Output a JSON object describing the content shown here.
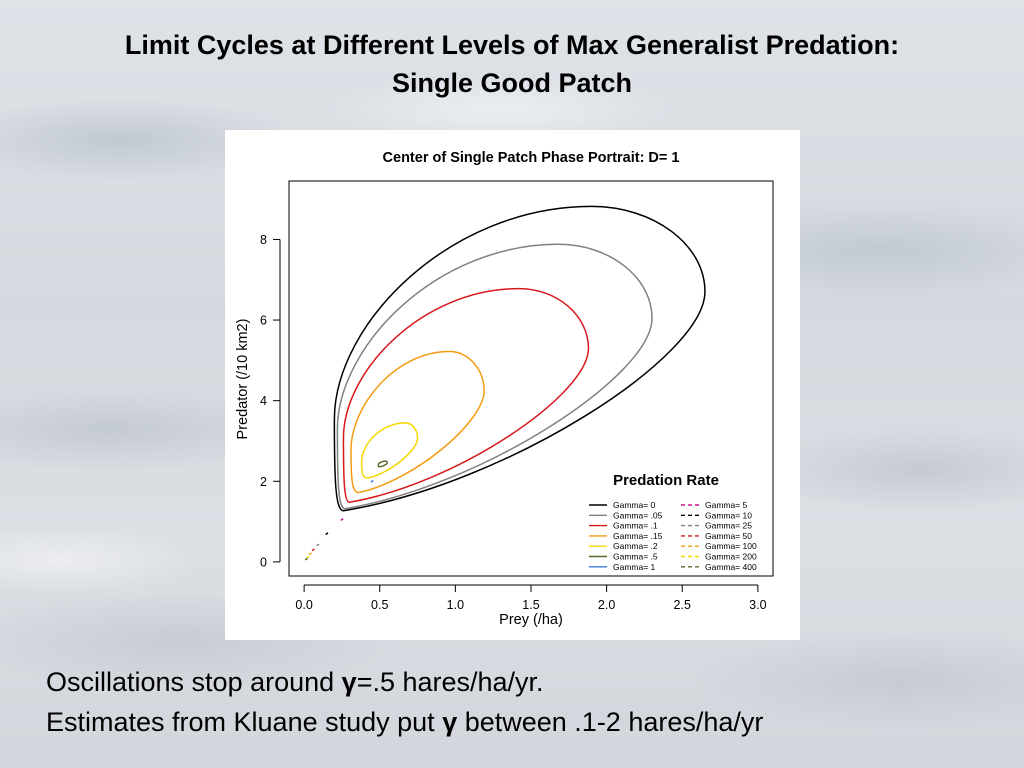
{
  "slide": {
    "title_line1": "Limit Cycles at Different Levels of Max Generalist Predation:",
    "title_line2": "Single Good Patch",
    "caption_line1": {
      "before": "Oscillations stop around ",
      "symbol": "γ",
      "after": "=.5 hares/ha/yr."
    },
    "caption_line2": {
      "before": "Estimates from Kluane study put ",
      "symbol": "γ",
      "after": " between .1-2 hares/ha/yr"
    }
  },
  "chart_data": {
    "type": "line",
    "title": "Center of Single Patch Phase Portrait: D= 1",
    "xlabel": "Prey (/ha)",
    "ylabel": "Predator (/10 km2)",
    "xlim": [
      -0.1,
      3.1
    ],
    "ylim": [
      -0.35,
      9.45
    ],
    "xticks": [
      0,
      0.5,
      1,
      1.5,
      2,
      2.5,
      3
    ],
    "xtick_labels": [
      "0.0",
      "0.5",
      "1.0",
      "1.5",
      "2.0",
      "2.5",
      "3.0"
    ],
    "yticks": [
      0,
      2,
      4,
      6,
      8
    ],
    "ytick_labels": [
      "0",
      "2",
      "4",
      "6",
      "8"
    ],
    "grid": false,
    "legend_title": "Predation Rate",
    "legend_position": "bottom-right",
    "series": [
      {
        "name": "Gamma= 0",
        "color": "#000000",
        "dash": "solid",
        "cycle": {
          "xmin": 0.2,
          "xmax": 2.65,
          "ymin": 1.27,
          "ymax": 8.82,
          "x_at_ymin": 0.26,
          "x_at_ymax": 1.9
        }
      },
      {
        "name": "Gamma= .05",
        "color": "#808080",
        "dash": "solid",
        "cycle": {
          "xmin": 0.22,
          "xmax": 2.3,
          "ymin": 1.32,
          "ymax": 7.88,
          "x_at_ymin": 0.27,
          "x_at_ymax": 1.68
        }
      },
      {
        "name": "Gamma= .1",
        "color": "#d7191c",
        "dash": "solid",
        "cycle": {
          "xmin": 0.26,
          "xmax": 1.88,
          "ymin": 1.48,
          "ymax": 6.78,
          "x_at_ymin": 0.3,
          "x_at_ymax": 1.42
        }
      },
      {
        "name": "Gamma= .15",
        "color": "#f39c12",
        "dash": "solid",
        "cycle": {
          "xmin": 0.31,
          "xmax": 1.19,
          "ymin": 1.72,
          "ymax": 5.22,
          "x_at_ymin": 0.36,
          "x_at_ymax": 0.96
        }
      },
      {
        "name": "Gamma= .2",
        "color": "#f5d800",
        "dash": "solid",
        "cycle": {
          "xmin": 0.38,
          "xmax": 0.75,
          "ymin": 2.08,
          "ymax": 3.45,
          "x_at_ymin": 0.42,
          "x_at_ymax": 0.67
        }
      },
      {
        "name": "Gamma= .5",
        "color": "#556b2f",
        "dash": "solid",
        "cycle": {
          "xmin": 0.49,
          "xmax": 0.55,
          "ymin": 2.36,
          "ymax": 2.5,
          "x_at_ymin": 0.5,
          "x_at_ymax": 0.54
        }
      },
      {
        "name": "Gamma= 1",
        "color": "#3a7bd5",
        "dash": "solid",
        "point": {
          "x": 0.45,
          "y": 2.0
        }
      },
      {
        "name": "Gamma= 5",
        "color": "#c71585",
        "dash": "dashed",
        "point": {
          "x": 0.25,
          "y": 1.05
        }
      },
      {
        "name": "Gamma= 10",
        "color": "#000000",
        "dash": "dashed",
        "point": {
          "x": 0.15,
          "y": 0.7
        }
      },
      {
        "name": "Gamma= 25",
        "color": "#808080",
        "dash": "dashed",
        "point": {
          "x": 0.09,
          "y": 0.42
        }
      },
      {
        "name": "Gamma= 50",
        "color": "#d7191c",
        "dash": "dashed",
        "point": {
          "x": 0.06,
          "y": 0.3
        }
      },
      {
        "name": "Gamma= 100",
        "color": "#f39c12",
        "dash": "dashed",
        "point": {
          "x": 0.04,
          "y": 0.2
        }
      },
      {
        "name": "Gamma= 200",
        "color": "#f5d800",
        "dash": "dashed",
        "point": {
          "x": 0.025,
          "y": 0.12
        }
      },
      {
        "name": "Gamma= 400",
        "color": "#556b2f",
        "dash": "dashed",
        "point": {
          "x": 0.015,
          "y": 0.07
        }
      }
    ]
  }
}
